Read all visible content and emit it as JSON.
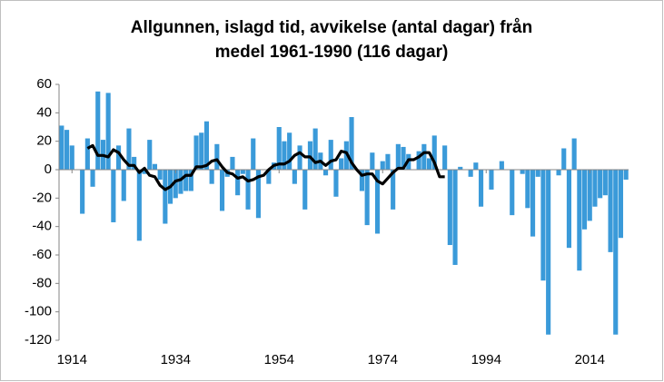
{
  "chart_data": {
    "type": "bar",
    "title": [
      "Allgunnen, islagd tid, avvikelse (antal dagar) från",
      "medel 1961-1990 (116 dagar)"
    ],
    "x": [
      1912,
      1913,
      1914,
      1915,
      1916,
      1917,
      1918,
      1919,
      1920,
      1921,
      1922,
      1923,
      1924,
      1925,
      1926,
      1927,
      1928,
      1929,
      1930,
      1931,
      1932,
      1933,
      1934,
      1935,
      1936,
      1937,
      1938,
      1939,
      1940,
      1941,
      1942,
      1943,
      1944,
      1945,
      1946,
      1947,
      1948,
      1949,
      1950,
      1951,
      1952,
      1953,
      1954,
      1955,
      1956,
      1957,
      1958,
      1959,
      1960,
      1961,
      1962,
      1963,
      1964,
      1965,
      1966,
      1967,
      1968,
      1969,
      1970,
      1971,
      1972,
      1973,
      1974,
      1975,
      1976,
      1977,
      1978,
      1979,
      1980,
      1981,
      1982,
      1983,
      1984,
      1985,
      1986,
      1987,
      1988,
      1989,
      1990,
      1991,
      1992,
      1993,
      1994,
      1995,
      1996,
      1997,
      1998,
      1999,
      2000,
      2001,
      2002,
      2003,
      2004,
      2005,
      2006,
      2007,
      2008,
      2009,
      2010,
      2011,
      2012,
      2013,
      2014,
      2015,
      2016,
      2017,
      2018,
      2019,
      2020,
      2021
    ],
    "series": [
      {
        "type": "bar",
        "color": "#3a9ad9",
        "values": [
          31,
          28,
          17,
          0,
          -31,
          22,
          -12,
          55,
          21,
          54,
          -37,
          17,
          -22,
          29,
          9,
          -50,
          -3,
          21,
          4,
          -7,
          -38,
          -24,
          -20,
          -17,
          -15,
          -15,
          24,
          26,
          34,
          -10,
          18,
          -29,
          -5,
          9,
          -18,
          -3,
          -28,
          22,
          -34,
          0,
          -10,
          5,
          30,
          20,
          26,
          -10,
          17,
          -28,
          20,
          29,
          12,
          -4,
          21,
          -19,
          8,
          20,
          37,
          0,
          -15,
          -39,
          12,
          -45,
          6,
          11,
          -28,
          18,
          16,
          11,
          0,
          13,
          18,
          8,
          24,
          0,
          17,
          -53,
          -67,
          2,
          0,
          -5,
          5,
          -26,
          0,
          -14,
          0,
          6,
          0,
          -32,
          0,
          -3,
          -27,
          -47,
          -5,
          -78,
          -116,
          0,
          -4,
          15,
          -55,
          22,
          -71,
          -42,
          -36,
          -26,
          -20,
          -18,
          -58,
          -116,
          -48,
          -7
        ]
      },
      {
        "type": "line",
        "color": "#000000",
        "values": [
          null,
          null,
          null,
          null,
          null,
          15,
          17,
          10,
          10,
          9,
          14,
          12,
          7,
          3,
          3,
          -2,
          1,
          -4,
          -5,
          -11,
          -14,
          -12,
          -8,
          -7,
          -4,
          -4,
          2,
          2,
          3,
          6,
          7,
          2,
          -2,
          -3,
          -6,
          -5,
          -8,
          -7,
          -5,
          -4,
          0,
          3,
          4,
          4,
          6,
          10,
          12,
          9,
          9,
          5,
          6,
          3,
          6,
          7,
          13,
          12,
          5,
          0,
          -4,
          -3,
          -3,
          -8,
          -10,
          -6,
          -2,
          1,
          1,
          7,
          7,
          9,
          12,
          12,
          5,
          -5,
          -5,
          null,
          null,
          null,
          null,
          null,
          null,
          null,
          null,
          null,
          null,
          null,
          null,
          null,
          null,
          null,
          null,
          null,
          null,
          null,
          null,
          null,
          null,
          null,
          null,
          null,
          null,
          null,
          null,
          null,
          null,
          null,
          null,
          null,
          null,
          null
        ]
      }
    ],
    "xlim": [
      1911.5,
      2021.5
    ],
    "xticks": [
      1914,
      1934,
      1954,
      1974,
      1994,
      2014
    ],
    "ylim": [
      -120,
      60
    ],
    "yticks": [
      -120,
      -100,
      -80,
      -60,
      -40,
      -20,
      0,
      20,
      40,
      60
    ],
    "grid": false
  }
}
